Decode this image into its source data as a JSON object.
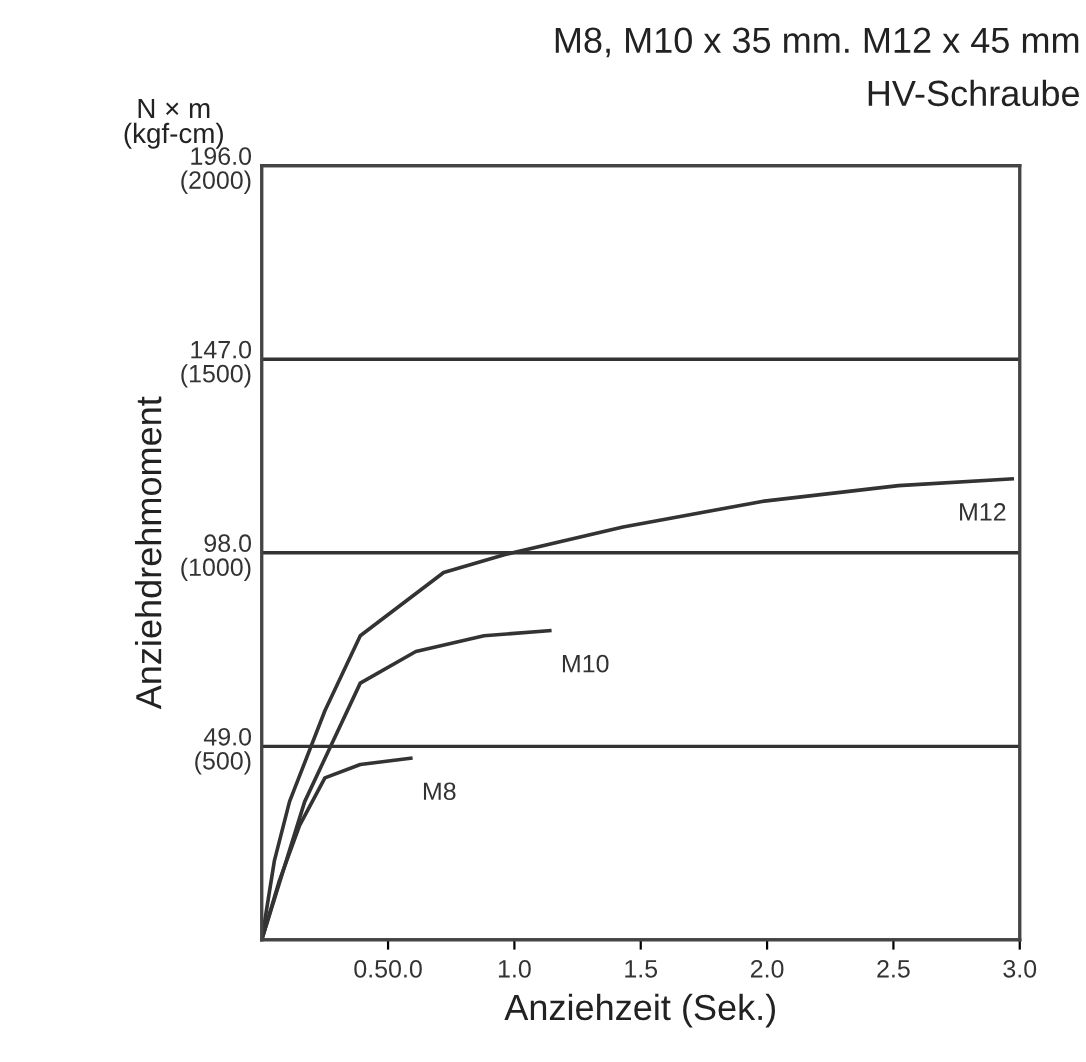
{
  "chart_data": {
    "type": "line",
    "title": "M8, M10 x 35 mm. M12 x 45 mm",
    "subtitle": "HV-Schraube",
    "xlabel": "Anziehzeit (Sek.)",
    "y2label": "Anziehdrehmoment",
    "annotations": [
      "N × m\n(kgf-cm)"
    ],
    "series": [
      {
        "name": "M8",
        "color": "#333333",
        "x": [
          0,
          0.07,
          0.15,
          0.25,
          0.39,
          0.59
        ],
        "values": [
          0,
          15,
          29,
          41,
          44.4,
          46
        ]
      },
      {
        "name": "M10",
        "color": "#333333",
        "x": [
          0,
          0.17,
          0.39,
          0.61,
          0.88,
          1.14
        ],
        "values": [
          0,
          35,
          65,
          73,
          77,
          78.3
        ]
      },
      {
        "name": "M12",
        "color": "#333333",
        "x": [
          0,
          0.05,
          0.11,
          0.25,
          0.39,
          0.72,
          0.96,
          1.43,
          1.98,
          2.52,
          2.97
        ],
        "values": [
          0,
          20,
          35,
          58,
          77,
          93,
          97.5,
          104.5,
          111,
          115,
          116.7
        ]
      }
    ],
    "xlim": [
      0,
      3.0
    ],
    "ylim": [
      0,
      196
    ],
    "xticks": [
      {
        "value": 0.5,
        "label": "0.50.0"
      },
      {
        "value": 1.0,
        "label": "1.0"
      },
      {
        "value": 1.5,
        "label": "1.5"
      },
      {
        "value": 2.0,
        "label": "2.0"
      },
      {
        "value": 2.5,
        "label": "2.5"
      },
      {
        "value": 3.0,
        "label": "3.0"
      }
    ],
    "yticks": [
      {
        "value": 0,
        "label": null
      },
      {
        "value": 49,
        "label": "49.0"
      },
      {
        "value": 98,
        "label": "98.0"
      },
      {
        "value": 147,
        "label": "147.0"
      },
      {
        "value": 196,
        "label": "196.0"
      }
    ],
    "y2lim": [
      0,
      2000
    ],
    "y2ticks": [
      {
        "value": 0,
        "label": null
      },
      {
        "value": 500,
        "label": "(500)"
      },
      {
        "value": 1000,
        "label": "(1000)"
      },
      {
        "value": 1500,
        "label": "(1500)"
      },
      {
        "value": 2000,
        "label": "(2000)"
      }
    ],
    "grid": "y",
    "legend": false,
    "marker": "none",
    "line_style": "solid"
  }
}
